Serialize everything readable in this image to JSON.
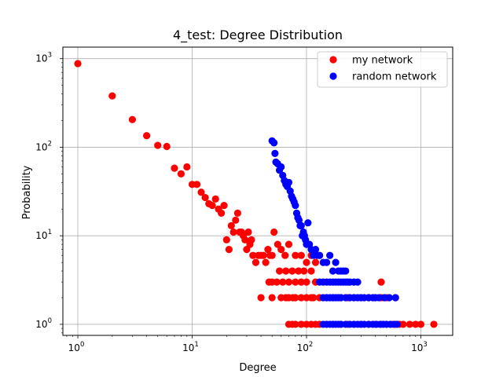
{
  "chart_data": {
    "type": "scatter",
    "title": "4_test: Degree Distribution",
    "xlabel": "Degree",
    "ylabel": "Probability",
    "xscale": "log",
    "yscale": "log",
    "xlim": [
      0.74,
      1900
    ],
    "ylim": [
      0.75,
      1350
    ],
    "x_ticks": [
      {
        "value": 1,
        "base": "10",
        "exp": "0"
      },
      {
        "value": 10,
        "base": "10",
        "exp": "1"
      },
      {
        "value": 100,
        "base": "10",
        "exp": "2"
      },
      {
        "value": 1000,
        "base": "10",
        "exp": "3"
      }
    ],
    "y_ticks": [
      {
        "value": 1,
        "base": "10",
        "exp": "0"
      },
      {
        "value": 10,
        "base": "10",
        "exp": "1"
      },
      {
        "value": 100,
        "base": "10",
        "exp": "2"
      },
      {
        "value": 1000,
        "base": "10",
        "exp": "3"
      }
    ],
    "grid": true,
    "legend_position": "top-right",
    "series": [
      {
        "name": "my network",
        "color": "#ff0000",
        "points": [
          [
            1,
            880
          ],
          [
            2,
            380
          ],
          [
            3,
            205
          ],
          [
            4,
            135
          ],
          [
            5,
            105
          ],
          [
            6,
            102
          ],
          [
            7,
            58
          ],
          [
            8,
            50
          ],
          [
            9,
            60
          ],
          [
            10,
            38
          ],
          [
            11,
            38
          ],
          [
            12,
            31
          ],
          [
            13,
            27
          ],
          [
            14,
            23
          ],
          [
            15,
            22
          ],
          [
            16,
            26
          ],
          [
            17,
            20
          ],
          [
            18,
            18
          ],
          [
            19,
            22
          ],
          [
            20,
            9
          ],
          [
            21,
            7
          ],
          [
            22,
            13
          ],
          [
            23,
            11
          ],
          [
            24,
            15
          ],
          [
            25,
            18
          ],
          [
            26,
            11
          ],
          [
            27,
            11
          ],
          [
            28,
            10
          ],
          [
            29,
            9
          ],
          [
            30,
            7
          ],
          [
            31,
            11
          ],
          [
            32,
            8
          ],
          [
            33,
            9
          ],
          [
            34,
            6
          ],
          [
            36,
            5
          ],
          [
            38,
            6
          ],
          [
            40,
            6
          ],
          [
            42,
            6
          ],
          [
            44,
            5
          ],
          [
            46,
            7
          ],
          [
            48,
            6
          ],
          [
            50,
            6
          ],
          [
            52,
            11
          ],
          [
            56,
            8
          ],
          [
            60,
            7
          ],
          [
            65,
            6
          ],
          [
            70,
            8
          ],
          [
            80,
            6
          ],
          [
            90,
            6
          ],
          [
            100,
            5
          ],
          [
            110,
            6
          ],
          [
            120,
            5
          ],
          [
            130,
            6
          ],
          [
            40,
            2
          ],
          [
            47,
            3
          ],
          [
            50,
            3
          ],
          [
            55,
            3
          ],
          [
            58,
            4
          ],
          [
            62,
            3
          ],
          [
            66,
            4
          ],
          [
            70,
            3
          ],
          [
            75,
            4
          ],
          [
            80,
            3
          ],
          [
            85,
            4
          ],
          [
            90,
            3
          ],
          [
            95,
            4
          ],
          [
            100,
            3
          ],
          [
            110,
            4
          ],
          [
            120,
            3
          ],
          [
            50,
            2
          ],
          [
            60,
            2
          ],
          [
            66,
            2
          ],
          [
            70,
            2
          ],
          [
            76,
            2
          ],
          [
            80,
            2
          ],
          [
            90,
            2
          ],
          [
            100,
            2
          ],
          [
            110,
            2
          ],
          [
            115,
            2
          ],
          [
            130,
            2
          ],
          [
            150,
            2
          ],
          [
            170,
            2
          ],
          [
            200,
            2
          ],
          [
            230,
            2
          ],
          [
            260,
            2
          ],
          [
            300,
            2
          ],
          [
            350,
            2
          ],
          [
            400,
            2
          ],
          [
            450,
            2
          ],
          [
            500,
            2
          ],
          [
            600,
            2
          ],
          [
            450,
            3
          ],
          [
            70,
            1
          ],
          [
            75,
            1
          ],
          [
            80,
            1
          ],
          [
            90,
            1
          ],
          [
            100,
            1
          ],
          [
            110,
            1
          ],
          [
            120,
            1
          ],
          [
            130,
            1
          ],
          [
            150,
            1
          ],
          [
            170,
            1
          ],
          [
            200,
            1
          ],
          [
            230,
            1
          ],
          [
            260,
            1
          ],
          [
            300,
            1
          ],
          [
            350,
            1
          ],
          [
            400,
            1
          ],
          [
            450,
            1
          ],
          [
            500,
            1
          ],
          [
            550,
            1
          ],
          [
            600,
            1
          ],
          [
            650,
            1
          ],
          [
            700,
            1
          ],
          [
            800,
            1
          ],
          [
            900,
            1
          ],
          [
            1000,
            1
          ],
          [
            1300,
            1
          ]
        ]
      },
      {
        "name": "random network",
        "color": "#0000ff",
        "points": [
          [
            50,
            118
          ],
          [
            52,
            112
          ],
          [
            53,
            85
          ],
          [
            54,
            68
          ],
          [
            56,
            65
          ],
          [
            58,
            55
          ],
          [
            60,
            60
          ],
          [
            62,
            48
          ],
          [
            64,
            42
          ],
          [
            66,
            38
          ],
          [
            68,
            36
          ],
          [
            70,
            40
          ],
          [
            72,
            32
          ],
          [
            74,
            28
          ],
          [
            76,
            26
          ],
          [
            78,
            24
          ],
          [
            80,
            22
          ],
          [
            82,
            18
          ],
          [
            84,
            16
          ],
          [
            86,
            15
          ],
          [
            88,
            13
          ],
          [
            90,
            13
          ],
          [
            92,
            10
          ],
          [
            94,
            11
          ],
          [
            96,
            10
          ],
          [
            98,
            9
          ],
          [
            100,
            8
          ],
          [
            103,
            14
          ],
          [
            106,
            8
          ],
          [
            110,
            7
          ],
          [
            115,
            6
          ],
          [
            120,
            7
          ],
          [
            125,
            6
          ],
          [
            130,
            6
          ],
          [
            140,
            5
          ],
          [
            150,
            5
          ],
          [
            160,
            6
          ],
          [
            170,
            4
          ],
          [
            180,
            5
          ],
          [
            190,
            4
          ],
          [
            200,
            4
          ],
          [
            210,
            4
          ],
          [
            220,
            4
          ],
          [
            130,
            3
          ],
          [
            140,
            3
          ],
          [
            150,
            3
          ],
          [
            160,
            3
          ],
          [
            170,
            3
          ],
          [
            180,
            3
          ],
          [
            190,
            3
          ],
          [
            200,
            3
          ],
          [
            210,
            3
          ],
          [
            220,
            3
          ],
          [
            230,
            3
          ],
          [
            240,
            3
          ],
          [
            260,
            3
          ],
          [
            280,
            3
          ],
          [
            140,
            2
          ],
          [
            150,
            2
          ],
          [
            160,
            2
          ],
          [
            170,
            2
          ],
          [
            180,
            2
          ],
          [
            190,
            2
          ],
          [
            200,
            2
          ],
          [
            220,
            2
          ],
          [
            240,
            2
          ],
          [
            260,
            2
          ],
          [
            280,
            2
          ],
          [
            300,
            2
          ],
          [
            320,
            2
          ],
          [
            350,
            2
          ],
          [
            380,
            2
          ],
          [
            400,
            2
          ],
          [
            430,
            2
          ],
          [
            480,
            2
          ],
          [
            530,
            2
          ],
          [
            600,
            2
          ],
          [
            140,
            1
          ],
          [
            150,
            1
          ],
          [
            160,
            1
          ],
          [
            170,
            1
          ],
          [
            180,
            1
          ],
          [
            190,
            1
          ],
          [
            200,
            1
          ],
          [
            220,
            1
          ],
          [
            240,
            1
          ],
          [
            260,
            1
          ],
          [
            280,
            1
          ],
          [
            300,
            1
          ],
          [
            320,
            1
          ],
          [
            350,
            1
          ],
          [
            380,
            1
          ],
          [
            410,
            1
          ],
          [
            440,
            1
          ],
          [
            470,
            1
          ],
          [
            500,
            1
          ],
          [
            540,
            1
          ],
          [
            580,
            1
          ],
          [
            620,
            1
          ]
        ]
      }
    ]
  }
}
